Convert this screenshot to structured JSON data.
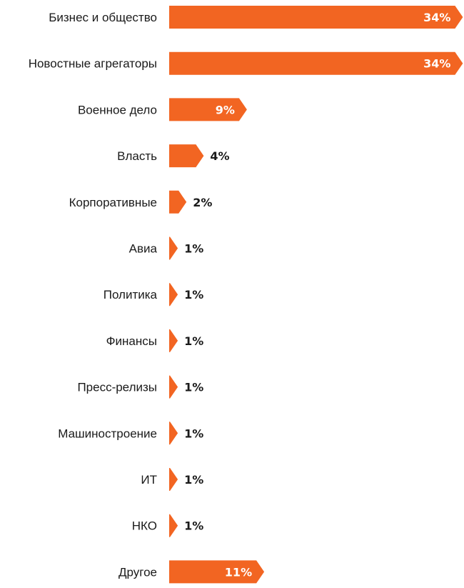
{
  "colors": {
    "bar": "#f26522",
    "label_inside": "#ffffff",
    "label_outside": "#1a1a1a",
    "text": "#1a1a1a"
  },
  "chart_data": {
    "type": "bar",
    "orientation": "horizontal",
    "categories": [
      "Бизнес и общество",
      "Новостные агрегаторы",
      "Военное дело",
      "Власть",
      "Корпоративные",
      "Авиа",
      "Политика",
      "Финансы",
      "Пресс-релизы",
      "Машиностроение",
      "ИТ",
      "НКО",
      "Другое"
    ],
    "values": [
      34,
      34,
      9,
      4,
      2,
      1,
      1,
      1,
      1,
      1,
      1,
      1,
      11
    ],
    "value_labels": [
      "34%",
      "34%",
      "9%",
      "4%",
      "2%",
      "1%",
      "1%",
      "1%",
      "1%",
      "1%",
      "1%",
      "1%",
      "11%"
    ],
    "unit": "%",
    "grid": false,
    "legend": "none"
  }
}
